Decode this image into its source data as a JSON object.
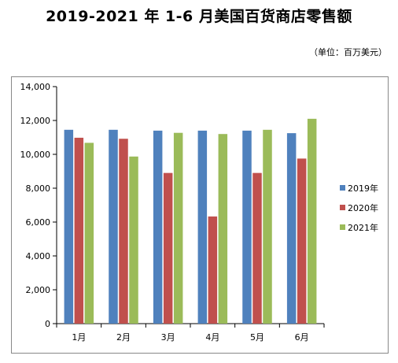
{
  "title": "2019-2021 年 1-6 月美国百货商店零售额",
  "unit": "（单位：百万美元）",
  "colors": {
    "s2019": "#4F81BD",
    "s2020": "#C0504D",
    "s2021": "#9BBB59"
  },
  "chart_data": {
    "type": "bar",
    "categories": [
      "1月",
      "2月",
      "3月",
      "4月",
      "5月",
      "6月"
    ],
    "series": [
      {
        "name": "2019年",
        "values": [
          11450,
          11450,
          11400,
          11400,
          11400,
          11250
        ]
      },
      {
        "name": "2020年",
        "values": [
          10980,
          10920,
          8900,
          6330,
          8900,
          9750
        ]
      },
      {
        "name": "2021年",
        "values": [
          10680,
          9870,
          11270,
          11200,
          11450,
          12100
        ]
      }
    ],
    "ylim": [
      0,
      14000
    ],
    "yticks": [
      "0",
      "2,000",
      "4,000",
      "6,000",
      "8,000",
      "10,000",
      "12,000",
      "14,000"
    ],
    "ytick_values": [
      0,
      2000,
      4000,
      6000,
      8000,
      10000,
      12000,
      14000
    ],
    "grid": false,
    "legend_position": "right"
  }
}
